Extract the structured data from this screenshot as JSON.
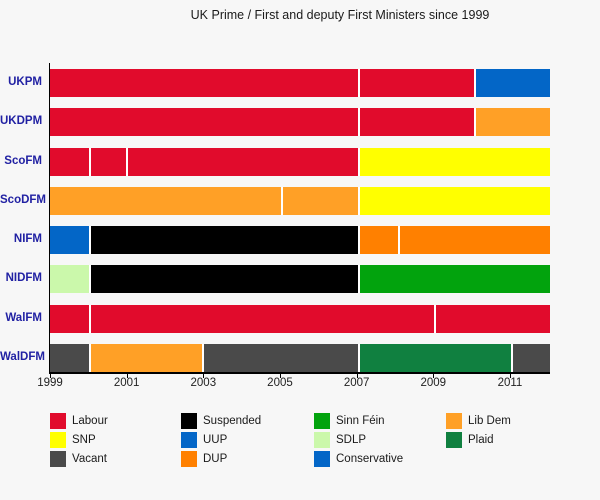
{
  "title": "UK Prime / First and deputy First Ministers since 1999",
  "colors": {
    "background": "#f7f7f7",
    "row_label": "#2121a3",
    "axis": "#000000",
    "divider": "#ffffff"
  },
  "chart_data": {
    "type": "bar",
    "subtype": "horizontal-timeline-gantt",
    "title": "UK Prime / First and deputy First Ministers since 1999",
    "x_axis": {
      "min": 1999,
      "max": 2012.05,
      "ticks": [
        1999,
        2001,
        2003,
        2005,
        2007,
        2009,
        2011
      ],
      "tick_labels": [
        "1999",
        "2001",
        "2003",
        "2005",
        "2007",
        "2009",
        "2011"
      ],
      "grid": false
    },
    "parties": {
      "labour": {
        "label": "Labour",
        "color": "#e10b2c"
      },
      "snp": {
        "label": "SNP",
        "color": "#ffff00"
      },
      "vacant": {
        "label": "Vacant",
        "color": "#4a4a4a"
      },
      "suspended": {
        "label": "Suspended",
        "color": "#000000"
      },
      "uup": {
        "label": "UUP",
        "color": "#0366c7"
      },
      "dup": {
        "label": "DUP",
        "color": "#ff8000"
      },
      "sinnfein": {
        "label": "Sinn Féin",
        "color": "#02a30d"
      },
      "sdlp": {
        "label": "SDLP",
        "color": "#cbf8ab"
      },
      "conservative": {
        "label": "Conservative",
        "color": "#0366c7"
      },
      "libdem": {
        "label": "Lib Dem",
        "color": "#ffa026"
      },
      "plaid": {
        "label": "Plaid",
        "color": "#108040"
      }
    },
    "rows": [
      {
        "label": "UKPM",
        "segments": [
          {
            "from": 1999,
            "to": 2007.05,
            "party": "labour"
          },
          {
            "from": 2007.05,
            "to": 2010.1,
            "party": "labour"
          },
          {
            "from": 2010.1,
            "to": 2012.05,
            "party": "conservative"
          }
        ]
      },
      {
        "label": "UKDPM",
        "segments": [
          {
            "from": 1999,
            "to": 2007.05,
            "party": "labour"
          },
          {
            "from": 2007.05,
            "to": 2010.1,
            "party": "labour"
          },
          {
            "from": 2010.1,
            "to": 2012.05,
            "party": "libdem"
          }
        ]
      },
      {
        "label": "ScoFM",
        "segments": [
          {
            "from": 1999,
            "to": 2000.05,
            "party": "labour"
          },
          {
            "from": 2000.05,
            "to": 2001.0,
            "party": "labour"
          },
          {
            "from": 2001.0,
            "to": 2007.05,
            "party": "labour"
          },
          {
            "from": 2007.05,
            "to": 2012.05,
            "party": "snp"
          }
        ]
      },
      {
        "label": "ScoDFM",
        "segments": [
          {
            "from": 1999,
            "to": 2005.05,
            "party": "libdem"
          },
          {
            "from": 2005.05,
            "to": 2007.05,
            "party": "libdem"
          },
          {
            "from": 2007.05,
            "to": 2012.05,
            "party": "snp"
          }
        ]
      },
      {
        "label": "NIFM",
        "segments": [
          {
            "from": 1999,
            "to": 2000.05,
            "party": "uup"
          },
          {
            "from": 2000.05,
            "to": 2007.05,
            "party": "suspended"
          },
          {
            "from": 2007.05,
            "to": 2008.1,
            "party": "dup"
          },
          {
            "from": 2008.1,
            "to": 2012.05,
            "party": "dup"
          }
        ]
      },
      {
        "label": "NIDFM",
        "segments": [
          {
            "from": 1999,
            "to": 2000.05,
            "party": "sdlp"
          },
          {
            "from": 2000.05,
            "to": 2007.05,
            "party": "suspended"
          },
          {
            "from": 2007.05,
            "to": 2012.05,
            "party": "sinnfein"
          }
        ]
      },
      {
        "label": "WalFM",
        "segments": [
          {
            "from": 1999,
            "to": 2000.05,
            "party": "labour"
          },
          {
            "from": 2000.05,
            "to": 2009.05,
            "party": "labour"
          },
          {
            "from": 2009.05,
            "to": 2012.05,
            "party": "labour"
          }
        ]
      },
      {
        "label": "WalDFM",
        "segments": [
          {
            "from": 1999,
            "to": 2000.05,
            "party": "vacant"
          },
          {
            "from": 2000.05,
            "to": 2003.0,
            "party": "libdem"
          },
          {
            "from": 2003.0,
            "to": 2007.05,
            "party": "vacant"
          },
          {
            "from": 2007.05,
            "to": 2011.05,
            "party": "plaid"
          },
          {
            "from": 2011.05,
            "to": 2012.05,
            "party": "vacant"
          }
        ]
      }
    ],
    "legend": {
      "position": "bottom",
      "columns": [
        [
          "labour",
          "snp",
          "vacant"
        ],
        [
          "suspended",
          "uup",
          "dup"
        ],
        [
          "sinnfein",
          "sdlp",
          "conservative"
        ],
        [
          "libdem",
          "plaid"
        ]
      ]
    }
  }
}
